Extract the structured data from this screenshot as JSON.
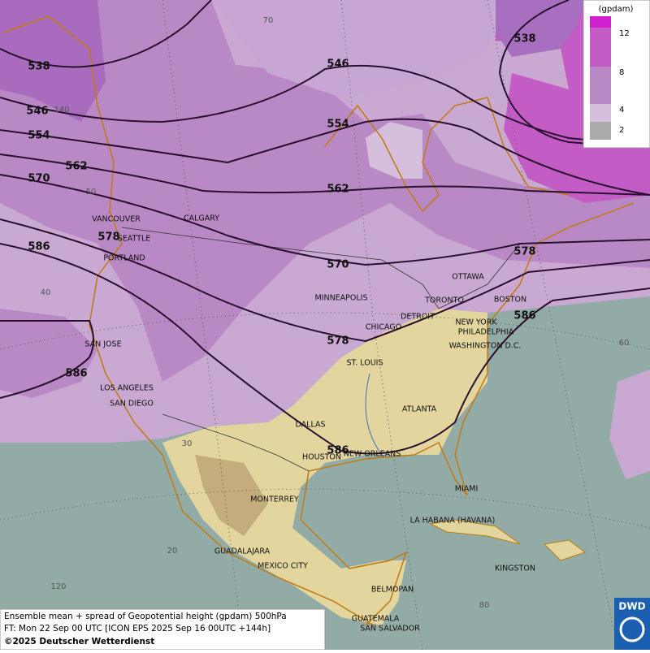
{
  "map": {
    "contour_labels": [
      538,
      546,
      554,
      562,
      570,
      586,
      586,
      546,
      554,
      562,
      570,
      578,
      578,
      586,
      538,
      586,
      578
    ],
    "cities": [
      "VANCOUVER",
      "CALGARY",
      "SEATTLE",
      "PORTLAND",
      "MINNEAPOLIS",
      "OTTAWA",
      "TORONTO",
      "BOSTON",
      "DETROIT",
      "CHICAGO",
      "NEW YORK",
      "PHILADELPHIA",
      "WASHINGTON D.C.",
      "SAN JOSE",
      "ST. LOUIS",
      "LOS ANGELES",
      "SAN DIEGO",
      "ATLANTA",
      "DALLAS",
      "HOUSTON",
      "NEW ORLEANS",
      "MIAMI",
      "MONTERREY",
      "LA HABANA (HAVANA)",
      "GUADALAJARA",
      "MEXICO CITY",
      "KINGSTON",
      "BELMOPAN",
      "GUATEMALA",
      "SAN SALVADOR"
    ],
    "graticule_labels": [
      70,
      140,
      50,
      40,
      30,
      60,
      20,
      120,
      80
    ],
    "legend": {
      "unit": "(gpdam)",
      "labels": [
        12,
        8,
        4,
        2
      ]
    },
    "footer": {
      "line1": "Ensemble mean + spread of Geopotential height (gpdam) 500hPa",
      "line2": "FT: Mon 22 Sep 00 UTC [ICON EPS 2025 Sep 16 00UTC +144h]",
      "copyright": "©2025 Deutscher Wetterdienst"
    },
    "logo": "DWD"
  }
}
